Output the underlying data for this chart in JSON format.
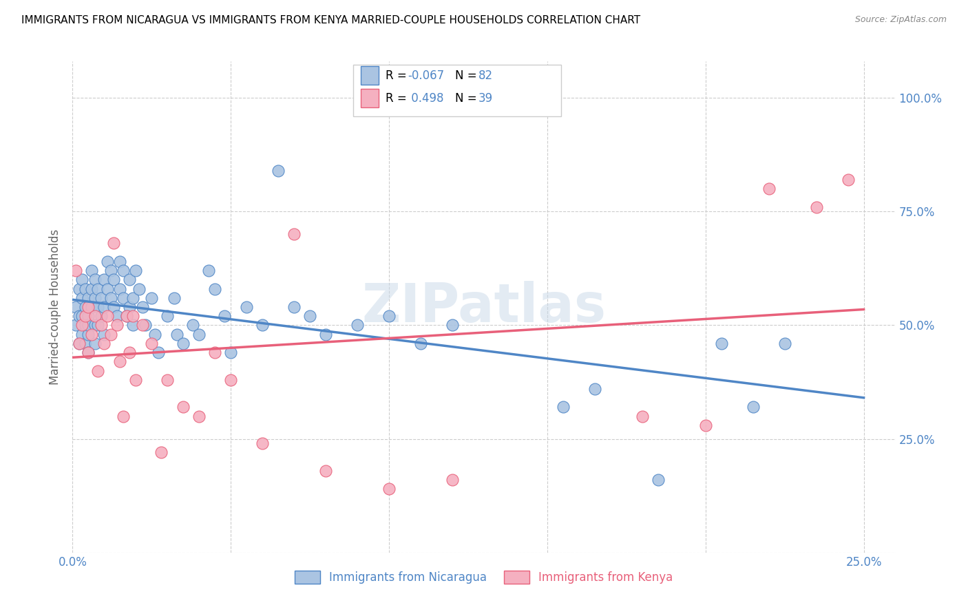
{
  "title": "IMMIGRANTS FROM NICARAGUA VS IMMIGRANTS FROM KENYA MARRIED-COUPLE HOUSEHOLDS CORRELATION CHART",
  "source": "Source: ZipAtlas.com",
  "ylabel_label": "Married-couple Households",
  "x_tick_positions": [
    0.0,
    0.05,
    0.1,
    0.15,
    0.2,
    0.25
  ],
  "x_tick_labels": [
    "0.0%",
    "",
    "",
    "",
    "",
    "25.0%"
  ],
  "y_tick_positions": [
    0.0,
    0.25,
    0.5,
    0.75,
    1.0
  ],
  "y_tick_labels": [
    "",
    "25.0%",
    "50.0%",
    "75.0%",
    "100.0%"
  ],
  "xlim": [
    0.0,
    0.26
  ],
  "ylim": [
    0.0,
    1.08
  ],
  "nicaragua_R": -0.067,
  "nicaragua_N": 82,
  "kenya_R": 0.498,
  "kenya_N": 39,
  "nicaragua_color": "#aac4e2",
  "kenya_color": "#f5b0c0",
  "nicaragua_line_color": "#4f86c6",
  "kenya_line_color": "#e8607a",
  "watermark": "ZIPatlas",
  "nicaragua_scatter_x": [
    0.001,
    0.001,
    0.002,
    0.002,
    0.002,
    0.003,
    0.003,
    0.003,
    0.003,
    0.004,
    0.004,
    0.004,
    0.004,
    0.005,
    0.005,
    0.005,
    0.005,
    0.005,
    0.006,
    0.006,
    0.006,
    0.007,
    0.007,
    0.007,
    0.007,
    0.008,
    0.008,
    0.008,
    0.009,
    0.009,
    0.01,
    0.01,
    0.01,
    0.011,
    0.011,
    0.012,
    0.012,
    0.013,
    0.013,
    0.014,
    0.015,
    0.015,
    0.016,
    0.016,
    0.017,
    0.018,
    0.018,
    0.019,
    0.019,
    0.02,
    0.021,
    0.022,
    0.023,
    0.025,
    0.026,
    0.027,
    0.03,
    0.032,
    0.033,
    0.035,
    0.038,
    0.04,
    0.043,
    0.045,
    0.048,
    0.05,
    0.055,
    0.06,
    0.065,
    0.07,
    0.075,
    0.08,
    0.09,
    0.1,
    0.11,
    0.12,
    0.155,
    0.165,
    0.185,
    0.205,
    0.215,
    0.225
  ],
  "nicaragua_scatter_y": [
    0.5,
    0.54,
    0.46,
    0.52,
    0.58,
    0.48,
    0.52,
    0.56,
    0.6,
    0.5,
    0.54,
    0.46,
    0.58,
    0.52,
    0.56,
    0.48,
    0.44,
    0.5,
    0.54,
    0.58,
    0.62,
    0.5,
    0.56,
    0.6,
    0.46,
    0.54,
    0.58,
    0.5,
    0.56,
    0.52,
    0.6,
    0.54,
    0.48,
    0.64,
    0.58,
    0.62,
    0.56,
    0.6,
    0.54,
    0.52,
    0.64,
    0.58,
    0.62,
    0.56,
    0.52,
    0.6,
    0.54,
    0.56,
    0.5,
    0.62,
    0.58,
    0.54,
    0.5,
    0.56,
    0.48,
    0.44,
    0.52,
    0.56,
    0.48,
    0.46,
    0.5,
    0.48,
    0.62,
    0.58,
    0.52,
    0.44,
    0.54,
    0.5,
    0.84,
    0.54,
    0.52,
    0.48,
    0.5,
    0.52,
    0.46,
    0.5,
    0.32,
    0.36,
    0.16,
    0.46,
    0.32,
    0.46
  ],
  "kenya_scatter_x": [
    0.001,
    0.002,
    0.003,
    0.004,
    0.005,
    0.005,
    0.006,
    0.007,
    0.008,
    0.009,
    0.01,
    0.011,
    0.012,
    0.013,
    0.014,
    0.015,
    0.016,
    0.017,
    0.018,
    0.019,
    0.02,
    0.022,
    0.025,
    0.028,
    0.03,
    0.035,
    0.04,
    0.045,
    0.05,
    0.06,
    0.07,
    0.08,
    0.1,
    0.12,
    0.18,
    0.2,
    0.22,
    0.235,
    0.245
  ],
  "kenya_scatter_y": [
    0.62,
    0.46,
    0.5,
    0.52,
    0.44,
    0.54,
    0.48,
    0.52,
    0.4,
    0.5,
    0.46,
    0.52,
    0.48,
    0.68,
    0.5,
    0.42,
    0.3,
    0.52,
    0.44,
    0.52,
    0.38,
    0.5,
    0.46,
    0.22,
    0.38,
    0.32,
    0.3,
    0.44,
    0.38,
    0.24,
    0.7,
    0.18,
    0.14,
    0.16,
    0.3,
    0.28,
    0.8,
    0.76,
    0.82
  ]
}
